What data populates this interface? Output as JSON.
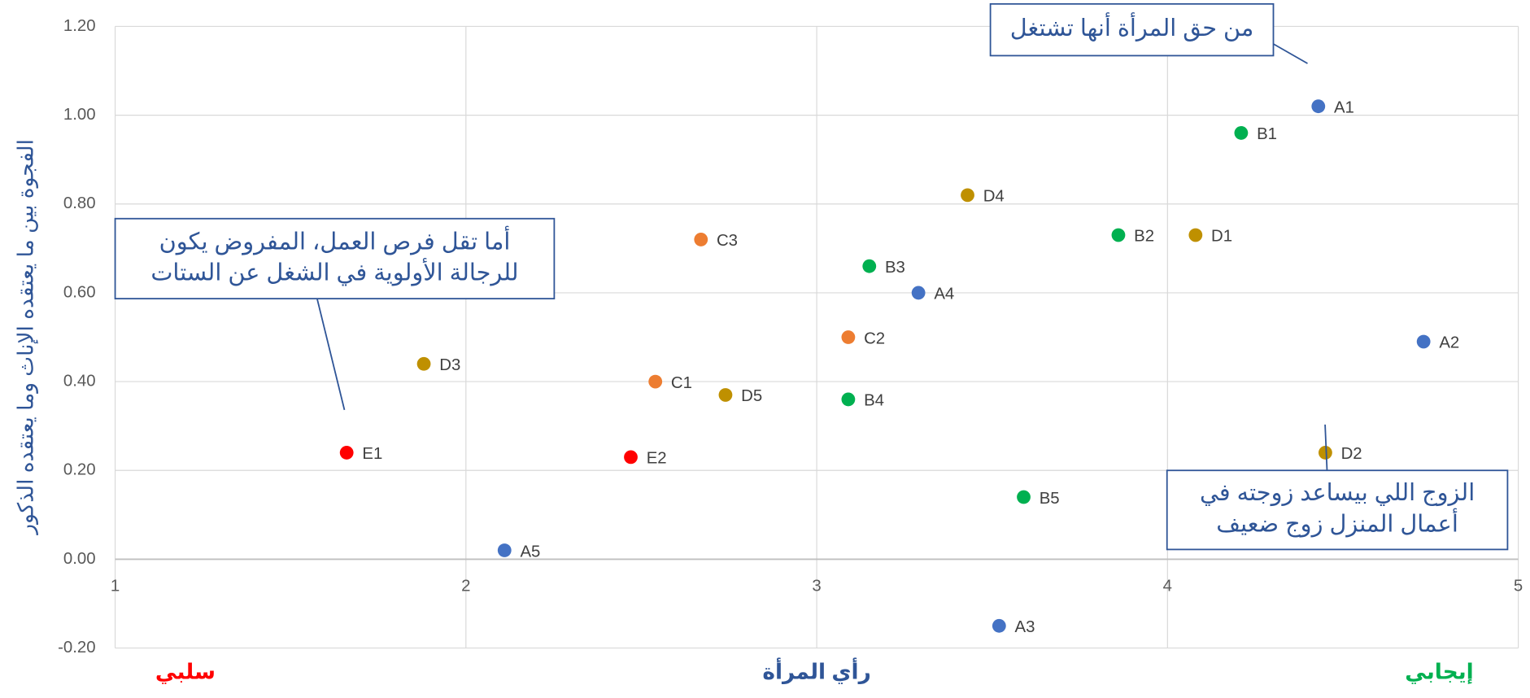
{
  "chart_data": {
    "type": "scatter",
    "y_label": "الفجوة بين ما يعتقده الإناث وما يعتقده الذكور",
    "x_label": "رأي المرأة",
    "x_left_label": "سلبي",
    "x_right_label": "إيجابي",
    "point_labels": [
      "A1",
      "B1",
      "D4",
      "B2",
      "D1",
      "C3",
      "B3",
      "A4",
      "C2",
      "A2",
      "D3",
      "C1",
      "D5",
      "B4",
      "E1",
      "E2",
      "D2",
      "B5",
      "A5",
      "A3"
    ],
    "x": [
      4.43,
      4.21,
      3.43,
      3.86,
      4.08,
      2.67,
      3.15,
      3.29,
      3.09,
      4.73,
      1.88,
      2.54,
      2.74,
      3.09,
      1.66,
      2.47,
      4.45,
      3.59,
      2.11,
      3.52
    ],
    "values": [
      1.02,
      0.96,
      0.82,
      0.73,
      0.73,
      0.72,
      0.66,
      0.6,
      0.5,
      0.49,
      0.44,
      0.4,
      0.37,
      0.36,
      0.24,
      0.23,
      0.24,
      0.14,
      0.02,
      -0.15
    ],
    "colors": [
      "#4472c4",
      "#00b050",
      "#bf9000",
      "#00b050",
      "#bf9000",
      "#ed7d31",
      "#00b050",
      "#4472c4",
      "#ed7d31",
      "#4472c4",
      "#bf9000",
      "#ed7d31",
      "#bf9000",
      "#00b050",
      "#ff0000",
      "#ff0000",
      "#bf9000",
      "#00b050",
      "#4472c4",
      "#4472c4"
    ],
    "xlim": [
      1,
      5
    ],
    "xticks": [
      1,
      2,
      3,
      4,
      5
    ],
    "ylim": [
      -0.2,
      1.2
    ],
    "yticks": [
      {
        "value": -0.2,
        "label": "-0.20"
      },
      {
        "value": 0,
        "label": "0.00"
      },
      {
        "value": 0.2,
        "label": "0.20"
      },
      {
        "value": 0.4,
        "label": "0.40"
      },
      {
        "value": 0.6,
        "label": "0.60"
      },
      {
        "value": 0.8,
        "label": "0.80"
      },
      {
        "value": 1.0,
        "label": "1.00"
      },
      {
        "value": 1.2,
        "label": "1.20"
      }
    ],
    "grid": true,
    "annotations": [
      {
        "lines": [
          "من حق المرأة أنها تشتغل"
        ]
      },
      {
        "lines": [
          "أما تقل فرص العمل، المفروض يكون",
          "للرجالة الأولوية في الشغل عن الستات"
        ]
      },
      {
        "lines": [
          "الزوج اللي بيساعد زوجته في",
          "أعمال المنزل زوج ضعيف"
        ]
      }
    ]
  }
}
